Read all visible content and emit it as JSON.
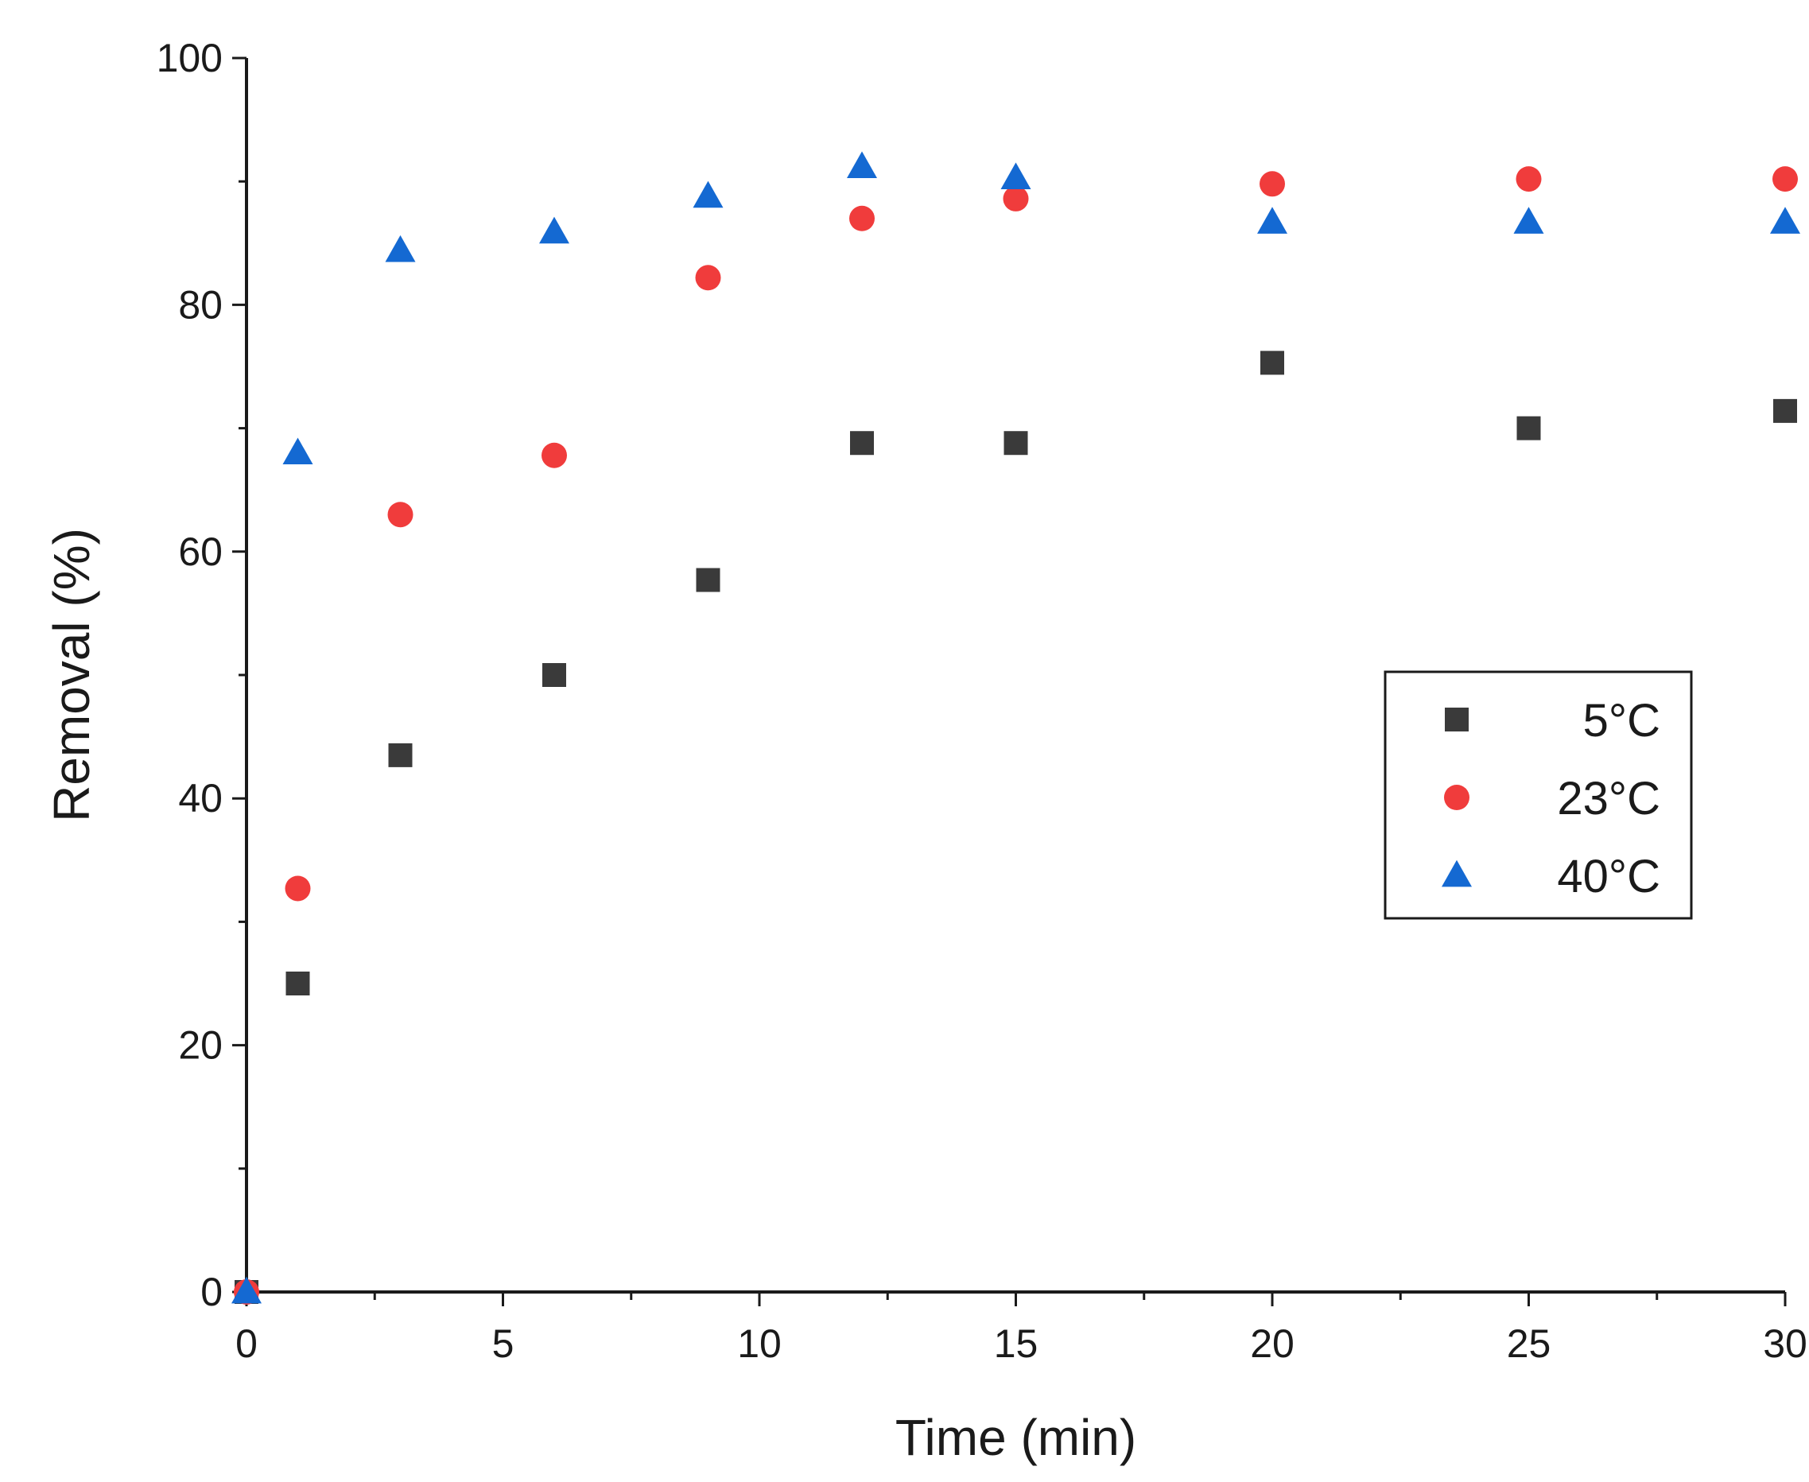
{
  "chart_data": {
    "type": "scatter",
    "title": "",
    "xlabel": "Time (min)",
    "ylabel": "Removal (%)",
    "xlim": [
      0,
      30
    ],
    "ylim": [
      0,
      100
    ],
    "xticks": [
      0,
      5,
      10,
      15,
      20,
      25,
      30
    ],
    "yticks": [
      0,
      20,
      40,
      60,
      80,
      100
    ],
    "x_minor_step": 2.5,
    "y_minor_step": 10,
    "grid": false,
    "legend_position": "center-right",
    "series": [
      {
        "name": "5°C",
        "marker": "square",
        "color": "#3a3a3a",
        "x": [
          0,
          1,
          3,
          6,
          9,
          12,
          15,
          20,
          25,
          30
        ],
        "y": [
          0,
          25,
          43.5,
          50,
          57.7,
          68.8,
          68.8,
          75.3,
          70,
          71.4
        ]
      },
      {
        "name": "23°C",
        "marker": "circle",
        "color": "#f03c3c",
        "x": [
          0,
          1,
          3,
          6,
          9,
          12,
          15,
          20,
          25,
          30
        ],
        "y": [
          0,
          32.7,
          63,
          67.8,
          82.2,
          87,
          88.6,
          89.8,
          90.2,
          90.2
        ]
      },
      {
        "name": "40°C",
        "marker": "triangle",
        "color": "#1469d2",
        "x": [
          0,
          1,
          3,
          6,
          9,
          12,
          15,
          20,
          25,
          30
        ],
        "y": [
          0,
          68,
          84.4,
          85.9,
          88.8,
          91.2,
          90.3,
          86.7,
          86.7,
          86.7
        ]
      }
    ]
  }
}
